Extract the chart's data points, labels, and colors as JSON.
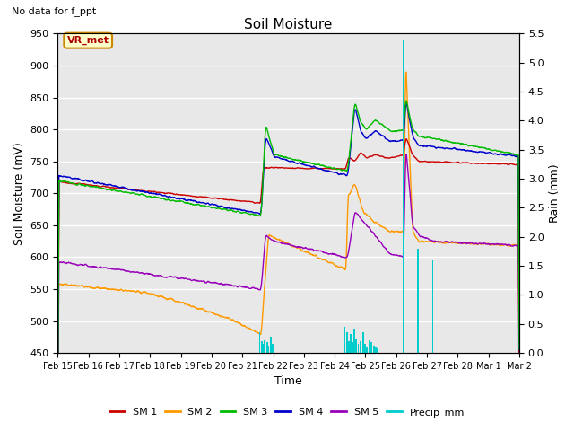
{
  "title": "Soil Moisture",
  "suptitle": "No data for f_ppt",
  "ylabel_left": "Soil Moisture (mV)",
  "ylabel_right": "Rain (mm)",
  "xlabel": "Time",
  "annotation": "VR_met",
  "ylim_left": [
    450,
    950
  ],
  "ylim_right": [
    0.0,
    5.5
  ],
  "yticks_left": [
    450,
    500,
    550,
    600,
    650,
    700,
    750,
    800,
    850,
    900,
    950
  ],
  "yticks_right": [
    0.0,
    0.5,
    1.0,
    1.5,
    2.0,
    2.5,
    3.0,
    3.5,
    4.0,
    4.5,
    5.0,
    5.5
  ],
  "bg_color": "#e8e8e8",
  "grid_color": "white",
  "colors": {
    "SM1": "#cc0000",
    "SM2": "#ff9900",
    "SM3": "#00bb00",
    "SM4": "#0000cc",
    "SM5": "#9900bb",
    "Precip": "#00cccc"
  },
  "legend_labels": [
    "SM 1",
    "SM 2",
    "SM 3",
    "SM 4",
    "SM 5",
    "Precip_mm"
  ],
  "n_points": 2000
}
